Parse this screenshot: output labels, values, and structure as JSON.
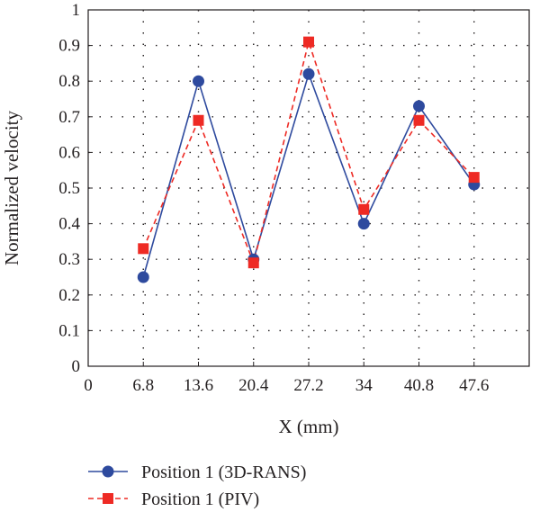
{
  "chart_data": {
    "type": "line",
    "title": "",
    "xlabel": "X (mm)",
    "ylabel": "Normalized velocity",
    "x": [
      6.8,
      13.6,
      20.4,
      27.2,
      34,
      40.8,
      47.6
    ],
    "xticks": [
      "0",
      "6.8",
      "13.6",
      "20.4",
      "27.2",
      "34",
      "40.8",
      "47.6"
    ],
    "xlim": [
      0,
      54.4
    ],
    "yticks": [
      "0",
      "0.1",
      "0.2",
      "0.3",
      "0.4",
      "0.5",
      "0.6",
      "0.7",
      "0.8",
      "0.9",
      "1"
    ],
    "ylim": [
      0,
      1
    ],
    "grid": true,
    "legend_position": "bottom-left",
    "series": [
      {
        "name": "Position 1 (3D-RANS)",
        "values": [
          0.25,
          0.8,
          0.3,
          0.82,
          0.4,
          0.73,
          0.51
        ],
        "color": "#2e4a9e",
        "line_style": "solid",
        "marker": "circle"
      },
      {
        "name": "Position 1 (PIV)",
        "values": [
          0.33,
          0.69,
          0.29,
          0.91,
          0.44,
          0.69,
          0.53
        ],
        "color": "#ee2a24",
        "line_style": "dashed",
        "marker": "square"
      }
    ]
  }
}
